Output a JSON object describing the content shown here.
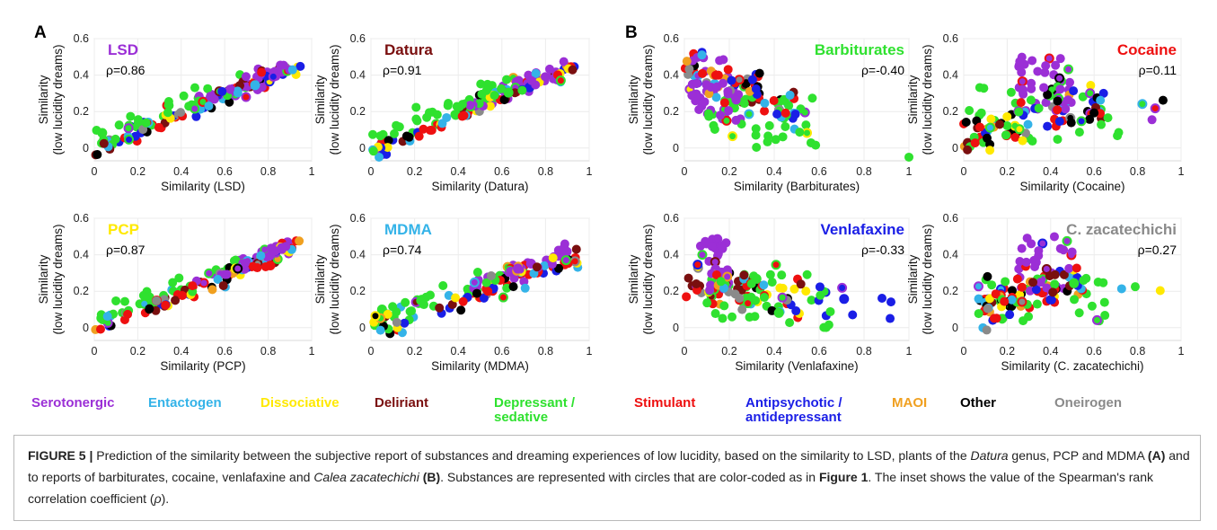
{
  "colors": {
    "serotonergic": "#9b2fd6",
    "entactogen": "#34b3e8",
    "dissociative": "#ffe900",
    "deliriant": "#7a0f0f",
    "depressant": "#2fe12f",
    "stimulant": "#ee1010",
    "antipsychotic": "#1a1ee6",
    "maoi": "#f0a020",
    "other": "#000000",
    "oneirogen": "#8a8a8a"
  },
  "panel_letters": [
    "A",
    "B"
  ],
  "legend": [
    {
      "key": "serotonergic",
      "label1": "Serotonergic",
      "label2": ""
    },
    {
      "key": "entactogen",
      "label1": "Entactogen",
      "label2": ""
    },
    {
      "key": "dissociative",
      "label1": "Dissociative",
      "label2": ""
    },
    {
      "key": "deliriant",
      "label1": "Deliriant",
      "label2": ""
    },
    {
      "key": "depressant",
      "label1": "Depressant /",
      "label2": "sedative"
    },
    {
      "key": "stimulant",
      "label1": "Stimulant",
      "label2": ""
    },
    {
      "key": "antipsychotic",
      "label1": "Antipsychotic /",
      "label2": "antidepressant"
    },
    {
      "key": "maoi",
      "label1": "MAOI",
      "label2": ""
    },
    {
      "key": "other",
      "label1": "Other",
      "label2": ""
    },
    {
      "key": "oneirogen",
      "label1": "Oneirogen",
      "label2": ""
    }
  ],
  "caption": {
    "fig_label": "FIGURE 5 |",
    "part1": " Prediction of the similarity between the subjective report of substances and dreaming experiences of low lucidity, based on the similarity to LSD, plants of the ",
    "italic1": "Datura",
    "part2": " genus, PCP and MDMA ",
    "bold_a": "(A)",
    "part3": " and to reports of barbiturates, cocaine, venlafaxine and ",
    "italic2": "Calea zacatechichi",
    "part4": " ",
    "bold_b": "(B)",
    "part5": ". Substances are represented with circles that are color-coded as in ",
    "bold_fig1": "Figure 1",
    "part6": ". The inset shows the value of the Spearman's rank correlation coefficient (",
    "rho": "ρ",
    "part7": ")."
  },
  "chart_data": [
    {
      "type": "scatter",
      "panel": "A",
      "title": "LSD",
      "title_color": "#9b2fd6",
      "title_pos": "left",
      "rho": "ρ=0.86",
      "xlabel": "Similarity (LSD)",
      "ylabel": [
        "Similarity",
        "(low lucidity dreams)"
      ],
      "xlim": [
        0,
        1
      ],
      "ylim": [
        -0.07,
        0.6
      ],
      "xticks": [
        "0",
        "0.2",
        "0.4",
        "0.6",
        "0.8",
        "1"
      ],
      "yticks": [
        "0",
        "0.2",
        "0.4",
        "0.6"
      ],
      "trend": "pos",
      "seed": 11
    },
    {
      "type": "scatter",
      "panel": "A",
      "title": "Datura",
      "title_color": "#7a0f0f",
      "title_pos": "left",
      "rho": "ρ=0.91",
      "xlabel": "Similarity (Datura)",
      "ylabel": [
        "Similarity",
        "(low lucidity dreams)"
      ],
      "xlim": [
        0,
        1
      ],
      "ylim": [
        -0.07,
        0.6
      ],
      "xticks": [
        "0",
        "0.2",
        "0.4",
        "0.6",
        "0.8",
        "1"
      ],
      "yticks": [
        "0",
        "0.2",
        "0.4",
        "0.6"
      ],
      "trend": "pos",
      "seed": 23
    },
    {
      "type": "scatter",
      "panel": "A",
      "title": "PCP",
      "title_color": "#ffe900",
      "title_pos": "left",
      "rho": "ρ=0.87",
      "xlabel": "Similarity (PCP)",
      "ylabel": [
        "Similarity",
        "(low lucidity dreams)"
      ],
      "xlim": [
        0,
        1
      ],
      "ylim": [
        -0.07,
        0.6
      ],
      "xticks": [
        "0",
        "0.2",
        "0.4",
        "0.6",
        "0.8",
        "1"
      ],
      "yticks": [
        "0",
        "0.2",
        "0.4",
        "0.6"
      ],
      "trend": "pos",
      "seed": 37
    },
    {
      "type": "scatter",
      "panel": "A",
      "title": "MDMA",
      "title_color": "#34b3e8",
      "title_pos": "left",
      "rho": "ρ=0.74",
      "xlabel": "Similarity (MDMA)",
      "ylabel": [
        "Similarity",
        "(low lucidity dreams)"
      ],
      "xlim": [
        0,
        1
      ],
      "ylim": [
        -0.07,
        0.6
      ],
      "xticks": [
        "0",
        "0.2",
        "0.4",
        "0.6",
        "0.8",
        "1"
      ],
      "yticks": [
        "0",
        "0.2",
        "0.4",
        "0.6"
      ],
      "trend": "posweak",
      "seed": 41
    },
    {
      "type": "scatter",
      "panel": "B",
      "title": "Barbiturates",
      "title_color": "#2fe12f",
      "title_pos": "right",
      "rho": "ρ=-0.40",
      "xlabel": "Similarity (Barbiturates)",
      "ylabel": [
        "Similarity",
        "(low lucidity dreams)"
      ],
      "xlim": [
        0,
        1
      ],
      "ylim": [
        -0.07,
        0.6
      ],
      "xticks": [
        "0",
        "0.2",
        "0.4",
        "0.6",
        "0.8",
        "1"
      ],
      "yticks": [
        "0",
        "0.2",
        "0.4",
        "0.6"
      ],
      "trend": "barb",
      "seed": 53
    },
    {
      "type": "scatter",
      "panel": "B",
      "title": "Cocaine",
      "title_color": "#ee1010",
      "title_pos": "right",
      "rho": "ρ=0.11",
      "xlabel": "Similarity (Cocaine)",
      "ylabel": [
        "Similarity",
        "(low lucidity dreams)"
      ],
      "xlim": [
        0,
        1
      ],
      "ylim": [
        -0.07,
        0.6
      ],
      "xticks": [
        "0",
        "0.2",
        "0.4",
        "0.6",
        "0.8",
        "1"
      ],
      "yticks": [
        "0",
        "0.2",
        "0.4",
        "0.6"
      ],
      "trend": "coc",
      "seed": 67
    },
    {
      "type": "scatter",
      "panel": "B",
      "title": "Venlafaxine",
      "title_color": "#1a1ee6",
      "title_pos": "right",
      "rho": "ρ=-0.33",
      "xlabel": "Similarity (Venlafaxine)",
      "ylabel": [
        "Similarity",
        "(low lucidity dreams)"
      ],
      "xlim": [
        0,
        1
      ],
      "ylim": [
        -0.07,
        0.6
      ],
      "xticks": [
        "0",
        "0.2",
        "0.4",
        "0.6",
        "0.8",
        "1"
      ],
      "yticks": [
        "0",
        "0.2",
        "0.4",
        "0.6"
      ],
      "trend": "venl",
      "seed": 79
    },
    {
      "type": "scatter",
      "panel": "B",
      "title": "C. zacatechichi",
      "title_color": "#8a8a8a",
      "title_pos": "right",
      "rho": "ρ=0.27",
      "xlabel": "Similarity (C. zacatechichi)",
      "ylabel": [
        "Similarity",
        "(low lucidity dreams)"
      ],
      "xlim": [
        0,
        1
      ],
      "ylim": [
        -0.07,
        0.6
      ],
      "xticks": [
        "0",
        "0.2",
        "0.4",
        "0.6",
        "0.8",
        "1"
      ],
      "yticks": [
        "0",
        "0.2",
        "0.4",
        "0.6"
      ],
      "trend": "zac",
      "seed": 97
    }
  ]
}
